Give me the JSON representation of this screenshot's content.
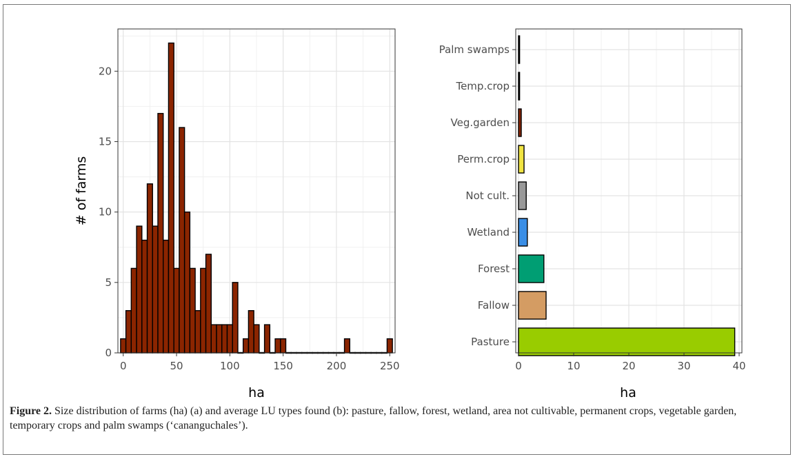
{
  "caption": {
    "label": "Figure 2.",
    "text": " Size distribution of farms (ha) (a) and average LU types found (b): pasture, fallow, forest, wetland, area not cultivable, permanent crops, vegetable garden, temporary crops and palm swamps (‘cananguchales’)."
  },
  "chart_data": [
    {
      "type": "bar",
      "subtype": "histogram",
      "xlabel": "ha",
      "ylabel": "# of farms",
      "xlim": [
        -5,
        255
      ],
      "ylim": [
        0,
        23
      ],
      "xticks": [
        0,
        50,
        100,
        150,
        200,
        250
      ],
      "yticks": [
        0,
        5,
        10,
        15,
        20
      ],
      "bin_width": 5,
      "bin_centers": [
        0,
        5,
        10,
        15,
        20,
        25,
        30,
        35,
        40,
        45,
        50,
        55,
        60,
        65,
        70,
        75,
        80,
        85,
        90,
        95,
        100,
        105,
        110,
        115,
        120,
        125,
        130,
        135,
        140,
        145,
        150,
        155,
        160,
        165,
        170,
        175,
        180,
        185,
        190,
        195,
        200,
        205,
        210,
        215,
        220,
        225,
        230,
        235,
        240,
        245,
        250
      ],
      "values": [
        1,
        3,
        6,
        9,
        8,
        12,
        9,
        17,
        8,
        22,
        6,
        16,
        10,
        6,
        3,
        6,
        7,
        2,
        2,
        2,
        2,
        5,
        0,
        1,
        3,
        2,
        0,
        2,
        0,
        1,
        1,
        0,
        0,
        0,
        0,
        0,
        0,
        0,
        0,
        0,
        0,
        0,
        1,
        0,
        0,
        0,
        0,
        0,
        0,
        0,
        1
      ],
      "fill_color": "#8B2500",
      "grid": true
    },
    {
      "type": "bar",
      "orientation": "horizontal",
      "xlabel": "ha",
      "ylabel": "",
      "xlim": [
        -0.5,
        40.5
      ],
      "xticks": [
        0,
        10,
        20,
        30,
        40
      ],
      "categories": [
        "Palm swamps",
        "Temp.crop",
        "Veg.garden",
        "Perm.crop",
        "Not cult.",
        "Wetland",
        "Forest",
        "Fallow",
        "Pasture"
      ],
      "values": [
        0.2,
        0.2,
        0.5,
        1.0,
        1.4,
        1.6,
        4.6,
        5.0,
        39.2
      ],
      "colors": [
        "#000000",
        "#000000",
        "#8B2500",
        "#F0E442",
        "#999999",
        "#3A8EE6",
        "#009E73",
        "#D49C63",
        "#99CC00"
      ],
      "grid": true
    }
  ]
}
